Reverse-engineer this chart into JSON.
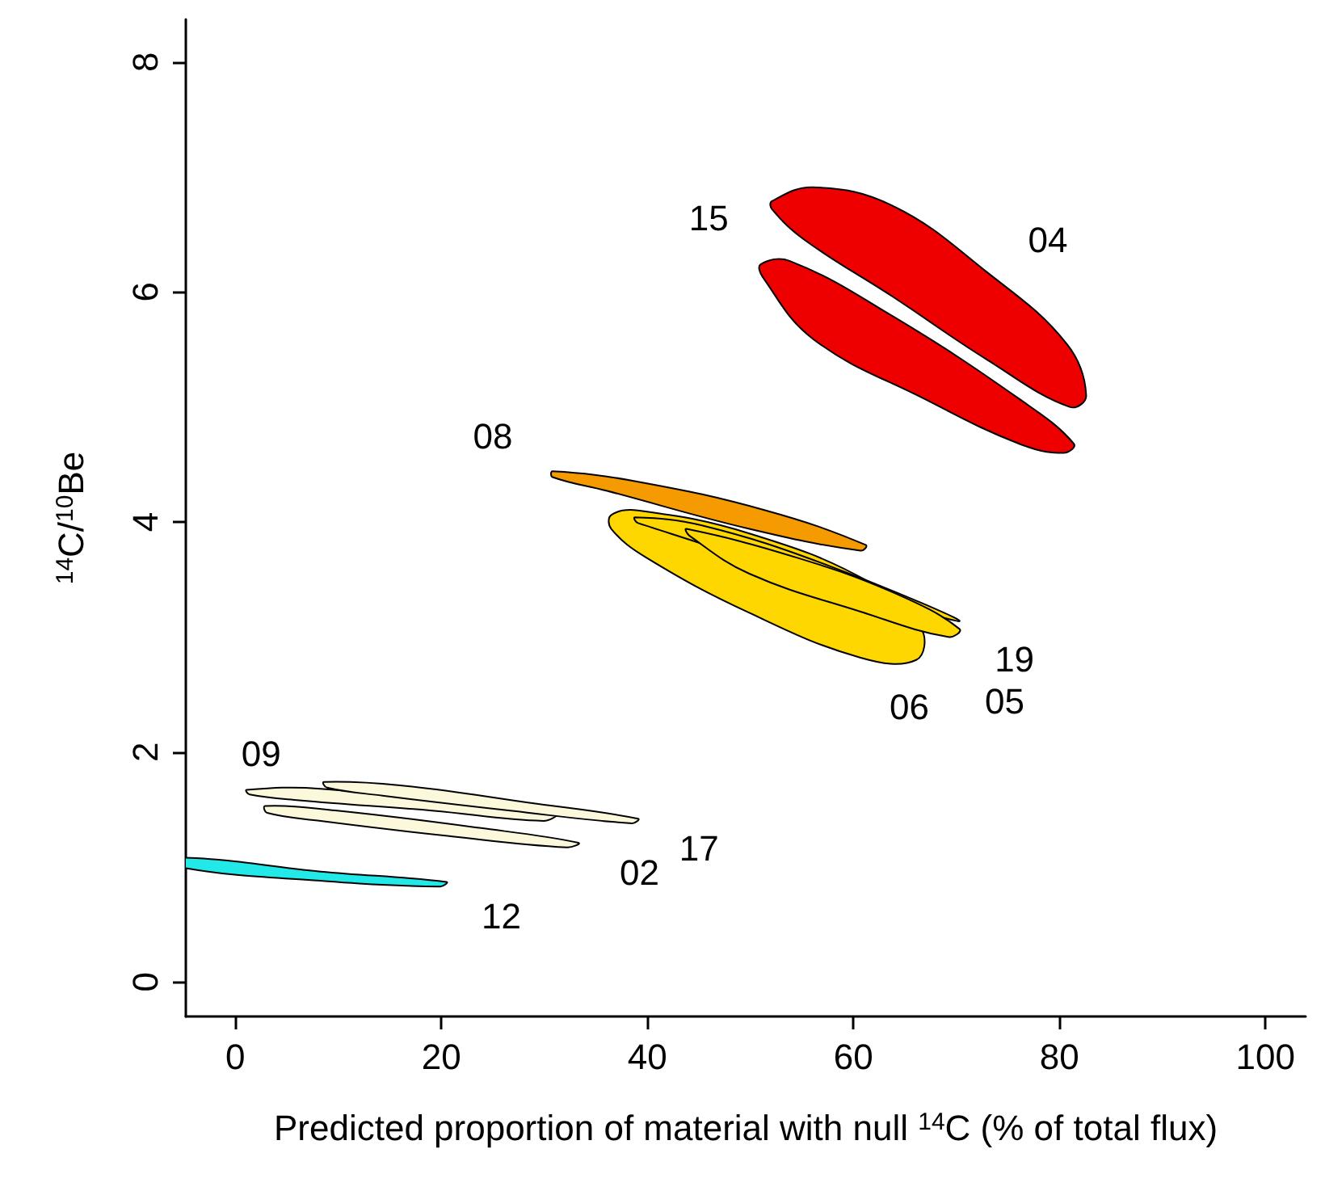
{
  "chart_data": {
    "type": "area",
    "xlabel": "Predicted proportion of material with null $^{14}$C (% of total flux)",
    "ylabel": "$^{14}$C/$^{10}$Be",
    "xlim": [
      -4.8,
      103.9
    ],
    "ylim": [
      -0.3,
      8.37
    ],
    "xticks": [
      0,
      20,
      40,
      60,
      80,
      100
    ],
    "yticks": [
      0,
      2,
      4,
      6,
      8
    ],
    "grid": false,
    "series": [
      {
        "color": "#ee0000",
        "x": [
          52.1,
          56.1,
          63.8,
          73.0,
          80.7,
          82.6,
          81.0,
          73.0,
          63.8,
          55.3,
          52.1
        ],
        "values": [
          6.79,
          6.91,
          6.75,
          6.17,
          5.55,
          5.1,
          5.0,
          5.41,
          5.96,
          6.45,
          6.72
        ]
      },
      {
        "color": "#ee0000",
        "x": [
          51.0,
          53.8,
          63.8,
          76.1,
          81.4,
          80.4,
          76.1,
          66.9,
          56.1,
          51.2
        ],
        "values": [
          6.24,
          6.27,
          5.79,
          5.07,
          4.68,
          4.6,
          4.68,
          5.07,
          5.59,
          6.13
        ]
      },
      {
        "color": "#f59a00",
        "x": [
          30.8,
          39.1,
          51.5,
          61.2,
          60.7,
          49.9,
          36.1,
          30.8
        ],
        "values": [
          4.44,
          4.35,
          4.1,
          3.8,
          3.75,
          3.94,
          4.27,
          4.39
        ]
      },
      {
        "color": "#ffd700",
        "x": [
          36.5,
          39.1,
          49.9,
          61.5,
          66.6,
          66.1,
          60.7,
          49.9,
          39.9,
          36.5
        ],
        "values": [
          4.06,
          4.1,
          3.9,
          3.48,
          3.07,
          2.8,
          2.82,
          3.21,
          3.69,
          3.94
        ]
      },
      {
        "color": "#ffd700",
        "x": [
          38.8,
          45.3,
          57.6,
          70.0,
          69.7,
          60.7,
          48.4,
          39.1
        ],
        "values": [
          4.04,
          3.97,
          3.62,
          3.14,
          null,
          null,
          null,
          3.99
        ]
      },
      {
        "color": "#ffd700",
        "x": [
          43.8,
          54.5,
          63.8,
          70.3,
          69.2,
          60.7,
          49.9,
          44.1
        ],
        "values": [
          3.94,
          3.69,
          3.39,
          3.07,
          3.0,
          3.22,
          3.55,
          3.88
        ]
      },
      {
        "color": "#fcf8dc",
        "x": [
          1.1,
          8.3,
          20.6,
          31.1,
          29.9,
          19.1,
          6.2,
          1.4
        ],
        "values": [
          1.67,
          1.68,
          null,
          1.46,
          1.4,
          1.49,
          1.58,
          1.63
        ]
      },
      {
        "color": "#fcf8dc",
        "x": [
          8.6,
          16.0,
          28.4,
          39.1,
          38.5,
          26.7,
          14.3,
          8.9
        ],
        "values": [
          1.74,
          1.71,
          1.56,
          1.42,
          1.38,
          1.49,
          1.62,
          1.69
        ]
      },
      {
        "color": "#fcf8dc",
        "x": [
          2.9,
          9.9,
          23.7,
          33.3,
          32.2,
          20.6,
          8.3,
          3.1
        ],
        "values": [
          1.53,
          1.49,
          1.34,
          1.21,
          1.17,
          1.27,
          1.4,
          1.47
        ]
      },
      {
        "color": "#22e8e8",
        "x": [
          -4.8,
          8.3,
          20.5,
          19.9,
          8.3,
          -4.8
        ],
        "values": [
          1.08,
          0.96,
          0.87,
          0.83,
          0.88,
          0.99
        ]
      }
    ],
    "annotations": [
      {
        "text": "04",
        "x": 73.0,
        "y": 6.17
      },
      {
        "text": "15",
        "x": 51.0,
        "y": 6.24
      },
      {
        "text": "08",
        "x": 30.8,
        "y": 4.44
      },
      {
        "text": "19",
        "x": 70.0,
        "y": 3.14
      },
      {
        "text": "05",
        "x": 69.2,
        "y": 3.0
      },
      {
        "text": "06",
        "x": 60.7,
        "y": 2.82
      },
      {
        "text": "09",
        "x": 8.3,
        "y": 1.68
      },
      {
        "text": "17",
        "x": 39.1,
        "y": 1.42
      },
      {
        "text": "02",
        "x": 33.3,
        "y": 1.21
      },
      {
        "text": "12",
        "x": 19.9,
        "y": 0.83
      }
    ]
  }
}
